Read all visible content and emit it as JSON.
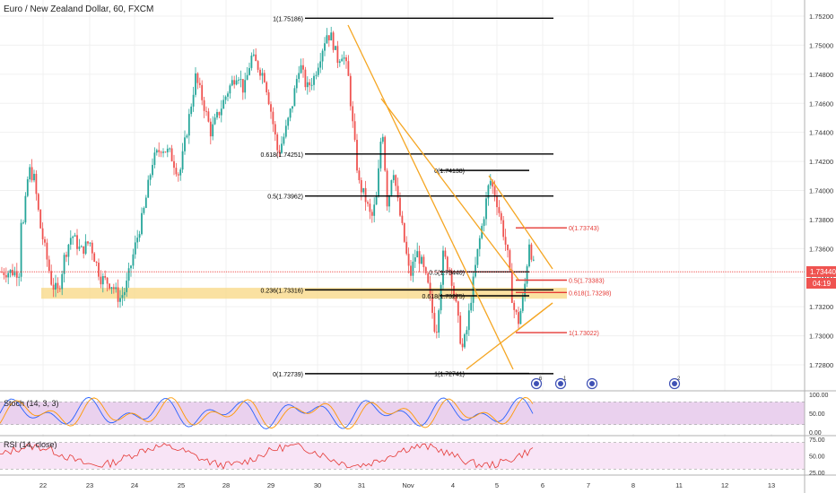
{
  "title": "Euro / New Zealand Dollar, 60, FXCM",
  "chart_data": {
    "type": "candlestick",
    "title": "Euro / New Zealand Dollar, 60, FXCM",
    "x_ticks": [
      "22",
      "23",
      "24",
      "25",
      "28",
      "29",
      "30",
      "31",
      "Nov",
      "4",
      "5",
      "6",
      "7",
      "8",
      "11",
      "12",
      "13"
    ],
    "y_ticks": [
      "1.75200",
      "1.75000",
      "1.74800",
      "1.74600",
      "1.74400",
      "1.74200",
      "1.74000",
      "1.73800",
      "1.73600",
      "1.73400",
      "1.73200",
      "1.73000",
      "1.72800"
    ],
    "ylim": [
      1.7266,
      1.753
    ],
    "last_price": "1.73440",
    "countdown": "04:19",
    "price_path": [
      {
        "x": 22,
        "y": 1.7395
      },
      {
        "x": 23,
        "y": 1.7385
      },
      {
        "x": 25,
        "y": 1.737
      },
      {
        "x": 32,
        "y": 1.7415
      },
      {
        "x": 38,
        "y": 1.7408
      },
      {
        "x": 45,
        "y": 1.7375
      },
      {
        "x": 50,
        "y": 1.736
      },
      {
        "x": 58,
        "y": 1.7335
      },
      {
        "x": 65,
        "y": 1.733
      },
      {
        "x": 72,
        "y": 1.7355
      },
      {
        "x": 80,
        "y": 1.737
      },
      {
        "x": 90,
        "y": 1.7358
      },
      {
        "x": 100,
        "y": 1.7365
      },
      {
        "x": 112,
        "y": 1.734
      },
      {
        "x": 125,
        "y": 1.7335
      },
      {
        "x": 133,
        "y": 1.7325
      },
      {
        "x": 140,
        "y": 1.7332
      },
      {
        "x": 150,
        "y": 1.736
      },
      {
        "x": 160,
        "y": 1.7385
      },
      {
        "x": 170,
        "y": 1.742
      },
      {
        "x": 180,
        "y": 1.743
      },
      {
        "x": 190,
        "y": 1.7425
      },
      {
        "x": 200,
        "y": 1.741
      },
      {
        "x": 208,
        "y": 1.744
      },
      {
        "x": 218,
        "y": 1.7478
      },
      {
        "x": 226,
        "y": 1.7462
      },
      {
        "x": 235,
        "y": 1.744
      },
      {
        "x": 245,
        "y": 1.7455
      },
      {
        "x": 255,
        "y": 1.747
      },
      {
        "x": 265,
        "y": 1.7482
      },
      {
        "x": 272,
        "y": 1.7468
      },
      {
        "x": 280,
        "y": 1.7492
      },
      {
        "x": 288,
        "y": 1.7485
      },
      {
        "x": 295,
        "y": 1.7478
      },
      {
        "x": 302,
        "y": 1.7455
      },
      {
        "x": 310,
        "y": 1.7425
      },
      {
        "x": 318,
        "y": 1.744
      },
      {
        "x": 326,
        "y": 1.746
      },
      {
        "x": 334,
        "y": 1.7488
      },
      {
        "x": 342,
        "y": 1.747
      },
      {
        "x": 350,
        "y": 1.7478
      },
      {
        "x": 358,
        "y": 1.7495
      },
      {
        "x": 364,
        "y": 1.7508
      },
      {
        "x": 370,
        "y": 1.7505
      },
      {
        "x": 376,
        "y": 1.749
      },
      {
        "x": 382,
        "y": 1.7495
      },
      {
        "x": 388,
        "y": 1.748
      },
      {
        "x": 394,
        "y": 1.744
      },
      {
        "x": 400,
        "y": 1.7405
      },
      {
        "x": 407,
        "y": 1.7395
      },
      {
        "x": 414,
        "y": 1.738
      },
      {
        "x": 420,
        "y": 1.7395
      },
      {
        "x": 426,
        "y": 1.7448
      },
      {
        "x": 432,
        "y": 1.7388
      },
      {
        "x": 438,
        "y": 1.7418
      },
      {
        "x": 444,
        "y": 1.739
      },
      {
        "x": 450,
        "y": 1.7368
      },
      {
        "x": 457,
        "y": 1.734
      },
      {
        "x": 464,
        "y": 1.7358
      },
      {
        "x": 470,
        "y": 1.735
      },
      {
        "x": 478,
        "y": 1.7332
      },
      {
        "x": 486,
        "y": 1.73
      },
      {
        "x": 494,
        "y": 1.7355
      },
      {
        "x": 502,
        "y": 1.7345
      },
      {
        "x": 509,
        "y": 1.7318
      },
      {
        "x": 515,
        "y": 1.729
      },
      {
        "x": 520,
        "y": 1.7302
      },
      {
        "x": 526,
        "y": 1.733
      },
      {
        "x": 533,
        "y": 1.736
      },
      {
        "x": 540,
        "y": 1.7385
      },
      {
        "x": 546,
        "y": 1.7408
      },
      {
        "x": 553,
        "y": 1.7395
      },
      {
        "x": 560,
        "y": 1.7375
      },
      {
        "x": 566,
        "y": 1.7355
      },
      {
        "x": 572,
        "y": 1.732
      },
      {
        "x": 578,
        "y": 1.731
      },
      {
        "x": 584,
        "y": 1.7328
      },
      {
        "x": 590,
        "y": 1.7365
      },
      {
        "x": 596,
        "y": 1.7344
      }
    ],
    "fib_left": [
      {
        "label": "1(1.75186)",
        "value": 1.75186
      },
      {
        "label": "0.618(1.74251)",
        "value": 1.74251
      },
      {
        "label": "0.5(1.73962)",
        "value": 1.73962
      },
      {
        "label": "0.236(1.73316)",
        "value": 1.73316
      },
      {
        "label": "0(1.72739)",
        "value": 1.72739
      }
    ],
    "fib_mid": [
      {
        "label": "0(1.74138)",
        "value": 1.74138
      },
      {
        "label": "0.5(1.73440)",
        "value": 1.7344
      },
      {
        "label": "0.618(1.73275)",
        "value": 1.73275
      },
      {
        "label": "1(1.72741)",
        "value": 1.72741
      }
    ],
    "fib_right": [
      {
        "label": "0(1.73743)",
        "value": 1.73743
      },
      {
        "label": "0.5(1.73383)",
        "value": 1.73383
      },
      {
        "label": "0.618(1.73298)",
        "value": 1.73298
      },
      {
        "label": "1(1.73022)",
        "value": 1.73022
      }
    ],
    "support_zone": [
      1.73255,
      1.7333
    ],
    "stoch": {
      "label": "Stoch (14, 3, 3)",
      "y_ticks": [
        "100.00",
        "50.00",
        "0.00"
      ],
      "ylim": [
        0,
        100
      ],
      "bands": [
        20,
        80
      ]
    },
    "rsi": {
      "label": "RSI (14, close)",
      "y_ticks": [
        "75.00",
        "50.00",
        "25.00"
      ],
      "ylim": [
        25,
        75
      ],
      "bands": [
        30,
        70
      ]
    },
    "event_markers": [
      "6",
      "1",
      "2"
    ],
    "colors": {
      "up": "#26a69a",
      "down": "#ef5350",
      "fib_black": "#000000",
      "fib_red": "#e53935",
      "trend": "#f5a623",
      "zone": "#f9d98a",
      "price_line": "#ef5350",
      "stoch_fill": "#e1bee7",
      "rsi_fill": "#f8e4f6"
    }
  }
}
